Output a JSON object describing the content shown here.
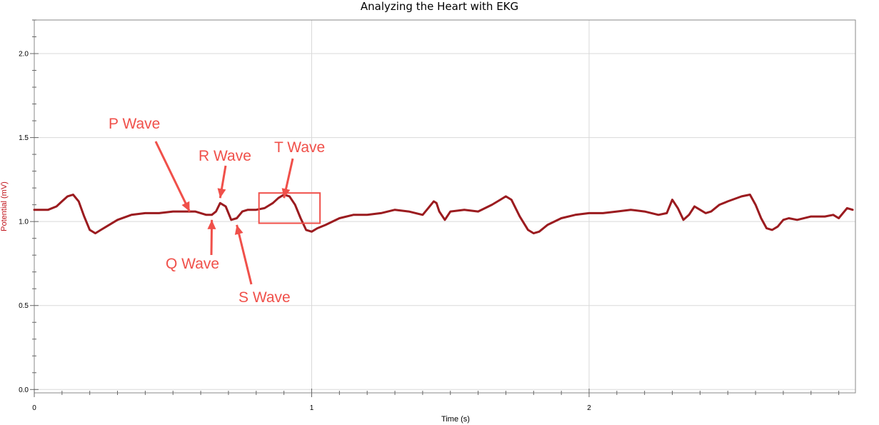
{
  "chart_data": {
    "type": "line",
    "title": "Analyzing the Heart with EKG",
    "xlabel": "Time (s)",
    "ylabel": "Potential (mV)",
    "xlim": [
      0,
      2.95
    ],
    "ylim": [
      -0.02,
      2.2
    ],
    "x_ticks": [
      0,
      1,
      2
    ],
    "x_tick_labels": [
      "0",
      "1",
      "2"
    ],
    "y_ticks": [
      0.0,
      0.5,
      1.0,
      1.5,
      2.0
    ],
    "y_tick_labels": [
      "0.0",
      "0.5",
      "1.0",
      "1.5",
      "2.0"
    ],
    "grid": true,
    "legend": "none",
    "line_color": "#9b1b1f",
    "annotation_color": "#f0504a",
    "series": [
      {
        "x": [
          0.0,
          0.05,
          0.08,
          0.1,
          0.12,
          0.14,
          0.16,
          0.18,
          0.2,
          0.22,
          0.24,
          0.26,
          0.3,
          0.35,
          0.4,
          0.45,
          0.5,
          0.55,
          0.58,
          0.6,
          0.62,
          0.64,
          0.655,
          0.67,
          0.69,
          0.71,
          0.73,
          0.75,
          0.77,
          0.8,
          0.83,
          0.86,
          0.88,
          0.9,
          0.92,
          0.94,
          0.96,
          0.98,
          1.0,
          1.02,
          1.05,
          1.1,
          1.15,
          1.2,
          1.25,
          1.3,
          1.35,
          1.4,
          1.42,
          1.44,
          1.45,
          1.46,
          1.48,
          1.5,
          1.55,
          1.6,
          1.65,
          1.68,
          1.7,
          1.72,
          1.75,
          1.78,
          1.8,
          1.82,
          1.85,
          1.9,
          1.95,
          2.0,
          2.05,
          2.1,
          2.15,
          2.2,
          2.25,
          2.28,
          2.3,
          2.32,
          2.34,
          2.36,
          2.38,
          2.4,
          2.42,
          2.44,
          2.47,
          2.5,
          2.55,
          2.58,
          2.6,
          2.62,
          2.64,
          2.66,
          2.68,
          2.7,
          2.72,
          2.75,
          2.8,
          2.85,
          2.88,
          2.9,
          2.93,
          2.95
        ],
        "y": [
          1.07,
          1.07,
          1.09,
          1.12,
          1.15,
          1.16,
          1.12,
          1.03,
          0.95,
          0.93,
          0.95,
          0.97,
          1.01,
          1.04,
          1.05,
          1.05,
          1.06,
          1.06,
          1.06,
          1.05,
          1.04,
          1.04,
          1.06,
          1.11,
          1.09,
          1.01,
          1.02,
          1.06,
          1.07,
          1.07,
          1.08,
          1.11,
          1.14,
          1.16,
          1.15,
          1.1,
          1.02,
          0.95,
          0.94,
          0.96,
          0.98,
          1.02,
          1.04,
          1.04,
          1.05,
          1.07,
          1.06,
          1.04,
          1.08,
          1.12,
          1.11,
          1.06,
          1.01,
          1.06,
          1.07,
          1.06,
          1.1,
          1.13,
          1.15,
          1.13,
          1.03,
          0.95,
          0.93,
          0.94,
          0.98,
          1.02,
          1.04,
          1.05,
          1.05,
          1.06,
          1.07,
          1.06,
          1.04,
          1.05,
          1.13,
          1.08,
          1.01,
          1.04,
          1.09,
          1.07,
          1.05,
          1.06,
          1.1,
          1.12,
          1.15,
          1.16,
          1.1,
          1.02,
          0.96,
          0.95,
          0.97,
          1.01,
          1.02,
          1.01,
          1.03,
          1.03,
          1.04,
          1.02,
          1.08,
          1.07
        ]
      }
    ],
    "annotations": [
      {
        "text": "P Wave",
        "target": [
          0.56,
          1.06
        ]
      },
      {
        "text": "R Wave",
        "target": [
          0.67,
          1.14
        ]
      },
      {
        "text": "T Wave",
        "target": [
          0.9,
          1.14
        ]
      },
      {
        "text": "Q Wave",
        "target": [
          0.64,
          1.01
        ]
      },
      {
        "text": "S Wave",
        "target": [
          0.73,
          0.98
        ]
      }
    ],
    "highlight_box": {
      "x": [
        0.81,
        1.03
      ],
      "y": [
        0.99,
        1.17
      ]
    }
  }
}
